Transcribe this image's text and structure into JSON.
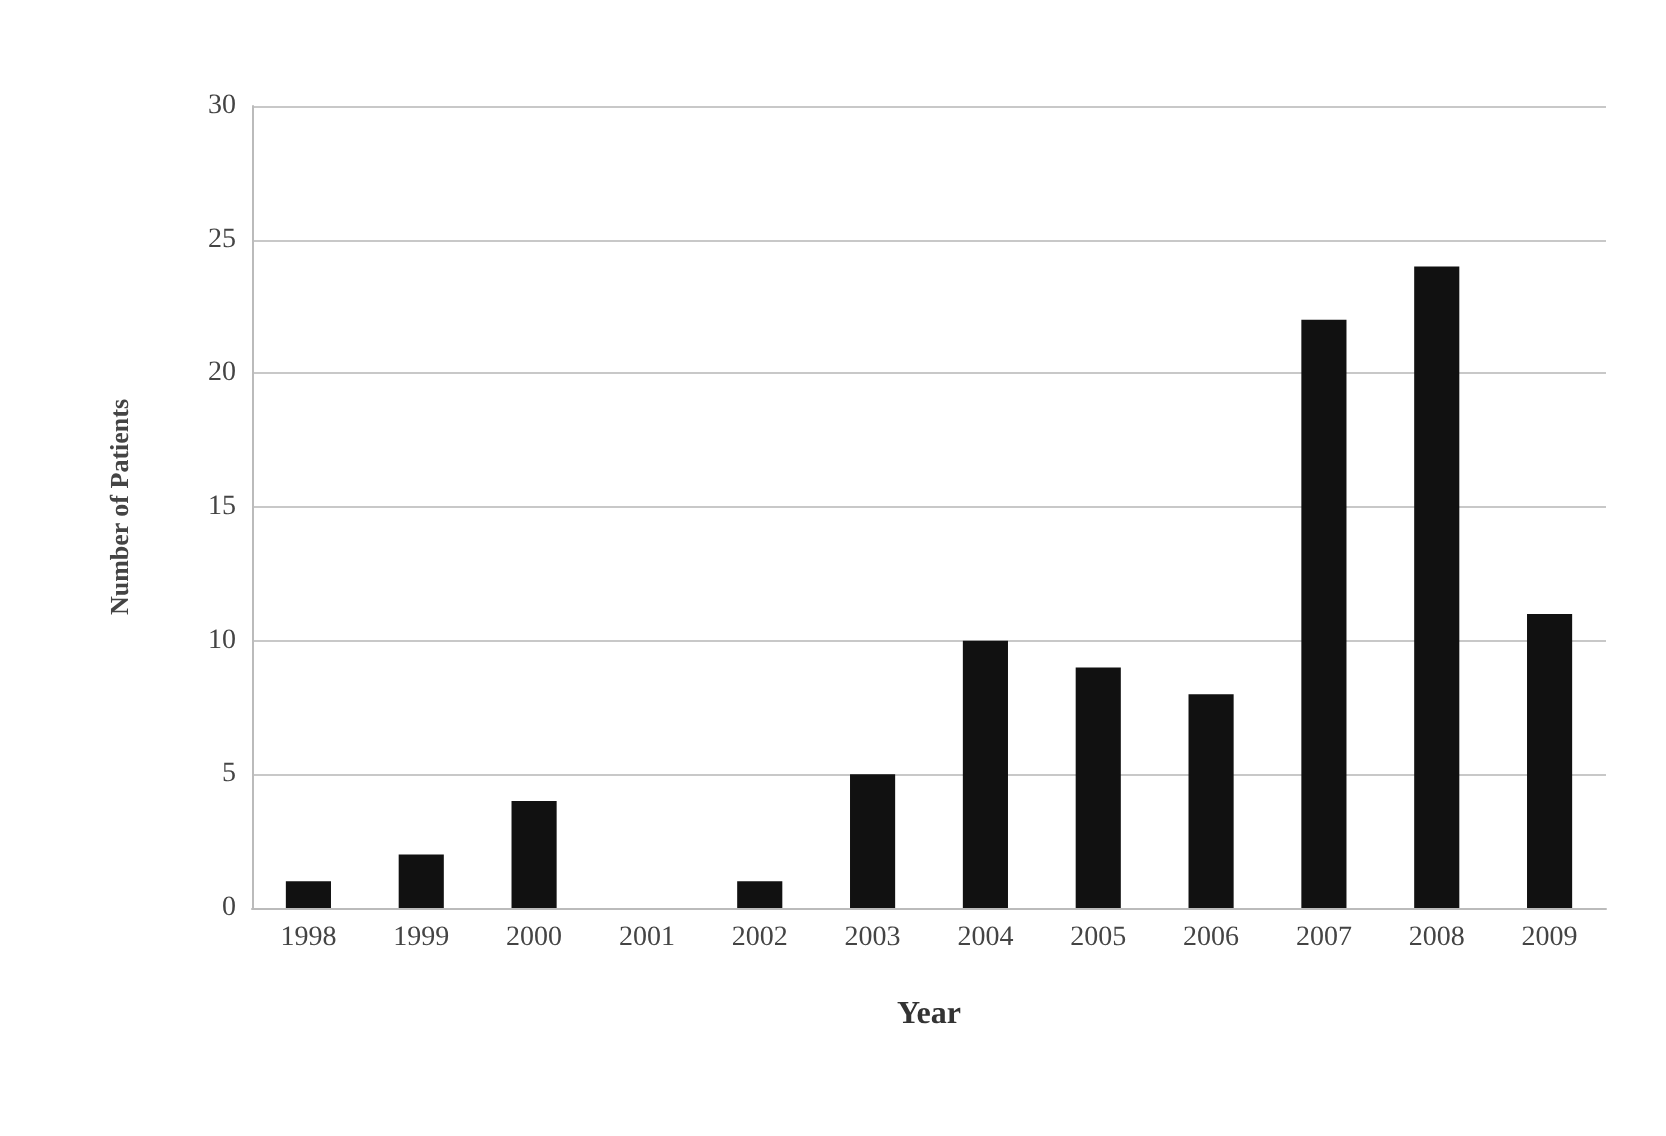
{
  "chart_data": {
    "type": "bar",
    "xlabel": "Year",
    "ylabel": "Number of Patients",
    "categories": [
      "1998",
      "1999",
      "2000",
      "2001",
      "2002",
      "2003",
      "2004",
      "2005",
      "2006",
      "2007",
      "2008",
      "2009"
    ],
    "values": [
      1,
      2,
      4,
      0,
      1,
      5,
      10,
      9,
      8,
      22,
      24,
      11
    ],
    "color": "#111111",
    "ylim": [
      0,
      30
    ],
    "yticks": [
      0,
      5,
      10,
      15,
      20,
      25,
      30
    ],
    "grid": "y"
  }
}
